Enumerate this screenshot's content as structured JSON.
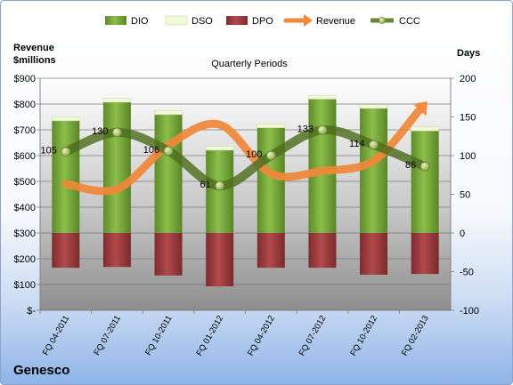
{
  "company": "Genesco",
  "colors": {
    "dio": "#76a53a",
    "dso": "#f2f9d8",
    "dpo": "#9b3b3e",
    "revenue": "#f0883a",
    "ccc": "#4e6e1f"
  },
  "chart_data": {
    "type": "bar",
    "title": "Quarterly Periods",
    "y_left_label_line1": "Revenue",
    "y_left_label_line2": "$millions",
    "y_right_label": "Days",
    "categories": [
      "FQ 04-2011",
      "FQ 07-2011",
      "FQ 10-2011",
      "FQ 01-2012",
      "FQ 04-2012",
      "FQ 07-2012",
      "FQ 10-2012",
      "FQ 02-2013"
    ],
    "y_left_ticks": [
      "$-",
      "$100",
      "$200",
      "$300",
      "$400",
      "$500",
      "$600",
      "$700",
      "$800",
      "$900"
    ],
    "y_left_range": [
      0,
      900
    ],
    "y_right_ticks": [
      "-100",
      "-50",
      "0",
      "50",
      "100",
      "150",
      "200"
    ],
    "y_right_range": [
      -100,
      200
    ],
    "grid": true,
    "legend_position": "top",
    "series": [
      {
        "name": "DIO",
        "type": "stacked-bar",
        "axis": "right",
        "values": [
          145,
          169,
          153,
          107,
          136,
          173,
          161,
          132
        ]
      },
      {
        "name": "DSO",
        "type": "stacked-bar",
        "axis": "right",
        "values": [
          5,
          5,
          5,
          5,
          5,
          5,
          5,
          5
        ]
      },
      {
        "name": "DPO",
        "type": "stacked-bar",
        "axis": "right",
        "values": [
          -45,
          -44,
          -55,
          -69,
          -45,
          -45,
          -54,
          -53
        ]
      },
      {
        "name": "Revenue",
        "type": "line",
        "axis": "left",
        "values": [
          490,
          470,
          640,
          720,
          530,
          540,
          580,
          800
        ]
      },
      {
        "name": "CCC",
        "type": "line",
        "axis": "right",
        "values": [
          105,
          130,
          106,
          61,
          100,
          133,
          114,
          86
        ],
        "data_labels": [
          "105",
          "130",
          "106",
          "61",
          "100",
          "133",
          "114",
          "86"
        ]
      }
    ]
  }
}
